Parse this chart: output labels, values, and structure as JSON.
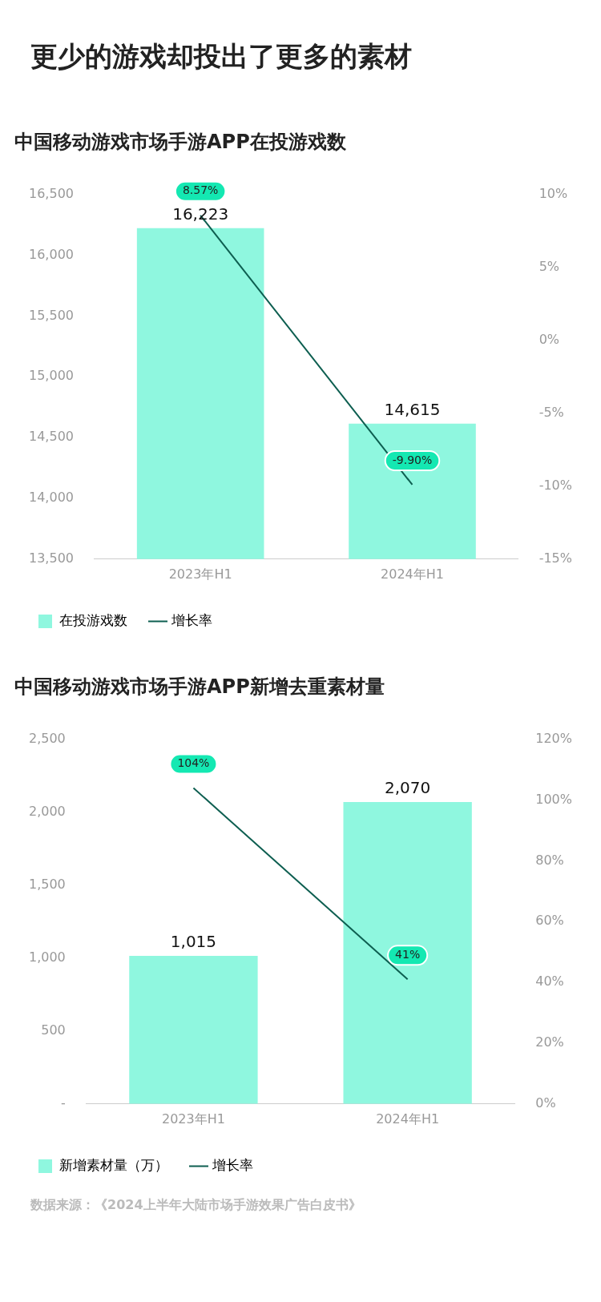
{
  "chart_data": [
    {
      "type": "bar",
      "title": "更少的游戏却投出了更多的素材",
      "subtitle": "中国移动游戏市场手游APP在投游戏数",
      "categories": [
        "2023年H1",
        "2024年H1"
      ],
      "series": [
        {
          "name": "在投游戏数",
          "color": "#8ff7df",
          "values": [
            16223,
            14615
          ],
          "value_labels": [
            "16,223",
            "14,615"
          ]
        },
        {
          "name": "增长率",
          "type": "line",
          "axis": "y2",
          "color": "#0d5e50",
          "values": [
            8.57,
            -9.9
          ],
          "value_labels": [
            "8.57%",
            "-9.90%"
          ]
        }
      ],
      "ylim": [
        13500,
        16500
      ],
      "yticks": [
        {
          "value": 13500,
          "label": "13,500"
        },
        {
          "value": 14000,
          "label": "14,000"
        },
        {
          "value": 14500,
          "label": "14,500"
        },
        {
          "value": 15000,
          "label": "15,000"
        },
        {
          "value": 15500,
          "label": "15,500"
        },
        {
          "value": 16000,
          "label": "16,000"
        },
        {
          "value": 16500,
          "label": "16,500"
        }
      ],
      "y2lim": [
        -15,
        10
      ],
      "y2ticks": [
        {
          "value": -15,
          "label": "-15%"
        },
        {
          "value": -10,
          "label": "-10%"
        },
        {
          "value": -5,
          "label": "-5%"
        },
        {
          "value": 0,
          "label": "0%"
        },
        {
          "value": 5,
          "label": "5%"
        },
        {
          "value": 10,
          "label": "10%"
        }
      ],
      "grid": false,
      "legend": "bottom"
    },
    {
      "type": "bar",
      "title": "中国移动游戏市场手游APP新增去重素材量",
      "categories": [
        "2023年H1",
        "2024年H1"
      ],
      "series": [
        {
          "name": "新增素材量（万）",
          "color": "#8ff7df",
          "values": [
            1015,
            2070
          ],
          "value_labels": [
            "1,015",
            "2,070"
          ]
        },
        {
          "name": "增长率",
          "type": "line",
          "axis": "y2",
          "color": "#0d5e50",
          "values": [
            104,
            41
          ],
          "value_labels": [
            "104%",
            "41%"
          ]
        }
      ],
      "ylim": [
        0,
        2500
      ],
      "yticks": [
        {
          "value": 0,
          "label": "-"
        },
        {
          "value": 500,
          "label": "500"
        },
        {
          "value": 1000,
          "label": "1,000"
        },
        {
          "value": 1500,
          "label": "1,500"
        },
        {
          "value": 2000,
          "label": "2,000"
        },
        {
          "value": 2500,
          "label": "2,500"
        }
      ],
      "y2lim": [
        0,
        120
      ],
      "y2ticks": [
        {
          "value": 0,
          "label": "0%"
        },
        {
          "value": 20,
          "label": "20%"
        },
        {
          "value": 40,
          "label": "40%"
        },
        {
          "value": 60,
          "label": "60%"
        },
        {
          "value": 80,
          "label": "80%"
        },
        {
          "value": 100,
          "label": "100%"
        },
        {
          "value": 120,
          "label": "120%"
        }
      ],
      "grid": false,
      "legend": "bottom",
      "annotations": [
        "数据来源：《2024上半年大陆市场手游效果广告白皮书》"
      ]
    }
  ]
}
